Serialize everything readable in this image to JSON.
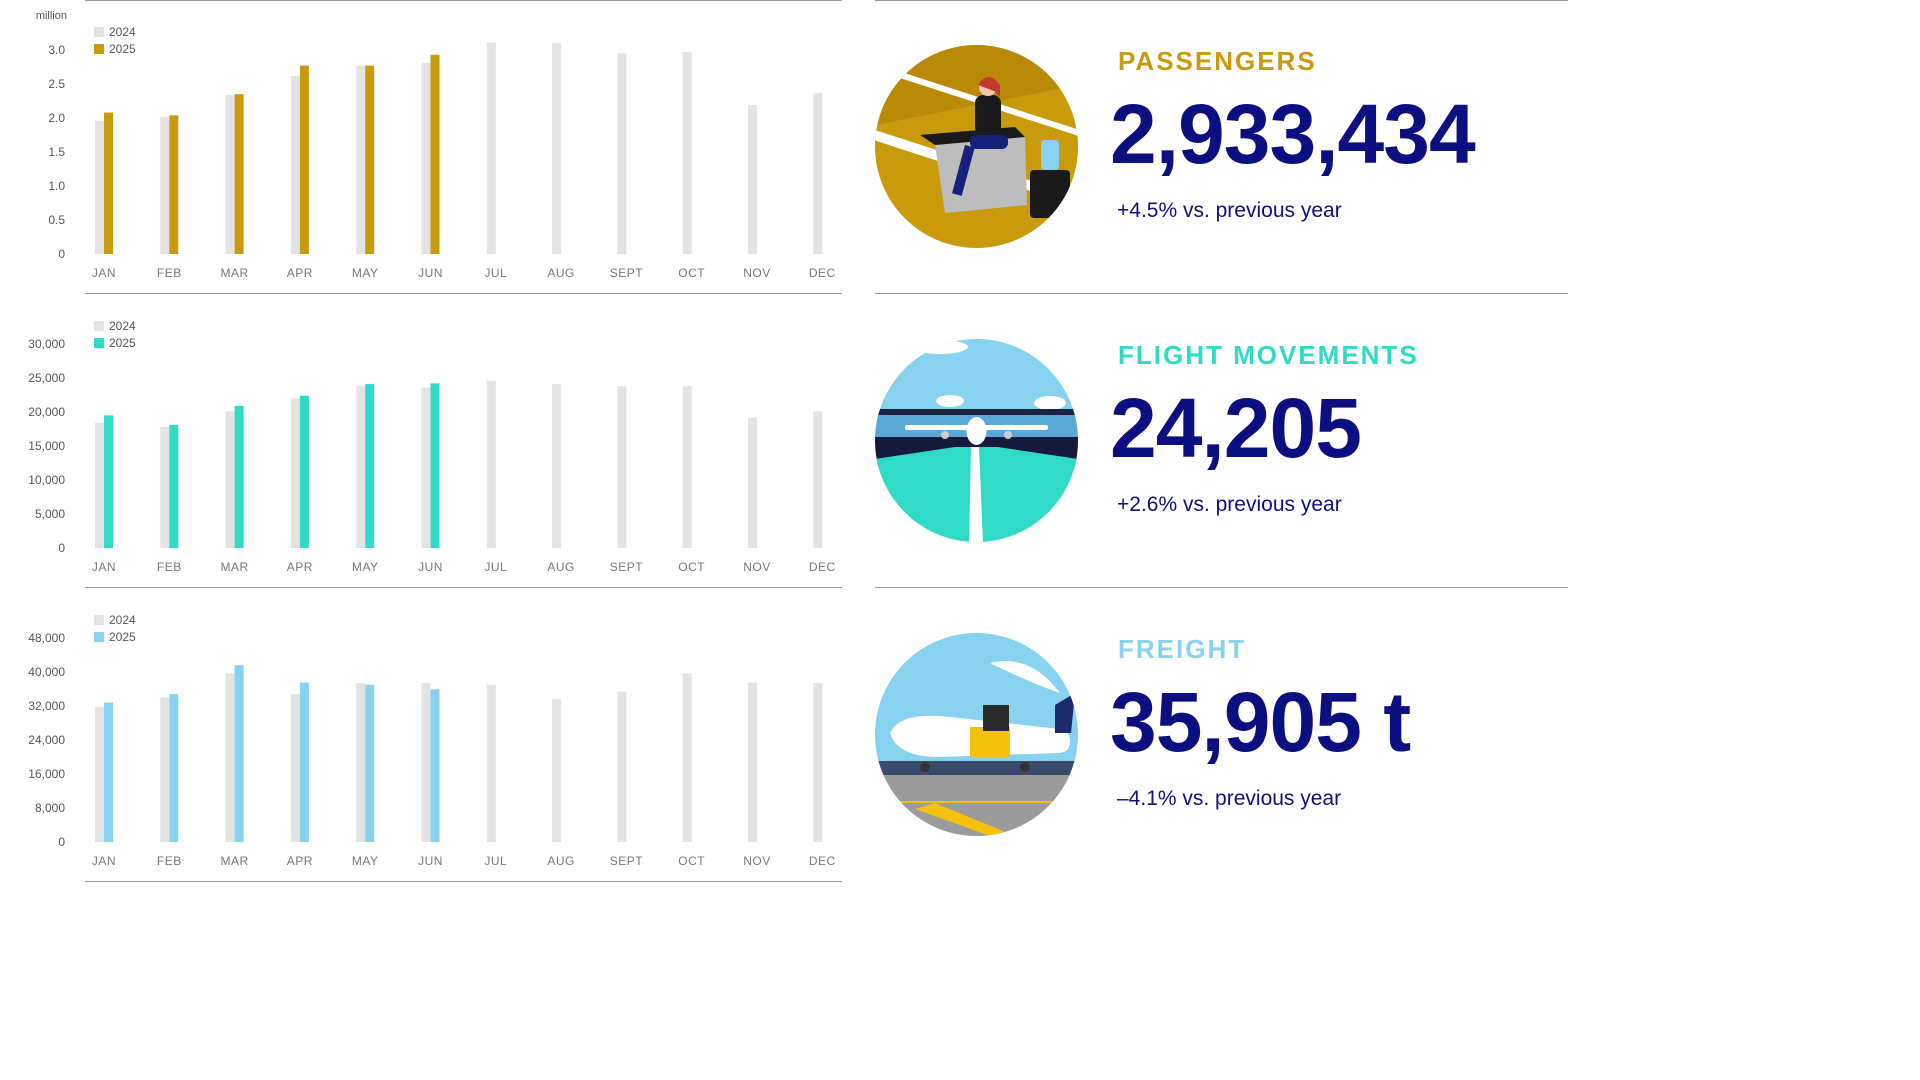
{
  "months": [
    "JAN",
    "FEB",
    "MAR",
    "APR",
    "MAY",
    "JUN",
    "JUL",
    "AUG",
    "SEPT",
    "OCT",
    "NOV",
    "DEC"
  ],
  "colors": {
    "prior": "#e3e3e3",
    "passengers": "#c89a0c",
    "flights": "#2fdbc6",
    "freight": "#86d2ef",
    "stat_value": "#0c0f80",
    "rule": "#9a9a9a"
  },
  "chart_data": [
    {
      "type": "bar",
      "unit_label": "million",
      "categories": [
        "JAN",
        "FEB",
        "MAR",
        "APR",
        "MAY",
        "JUN",
        "JUL",
        "AUG",
        "SEPT",
        "OCT",
        "NOV",
        "DEC"
      ],
      "ylim": [
        0,
        3.0
      ],
      "yticks": [
        "0",
        "0.5",
        "1.0",
        "1.5",
        "2.0",
        "2.5",
        "3.0"
      ],
      "series": [
        {
          "name": "2024",
          "color": "#e3e3e3",
          "values": [
            1.96,
            2.02,
            2.34,
            2.62,
            2.77,
            2.81,
            3.11,
            3.1,
            2.95,
            2.97,
            2.19,
            2.37
          ]
        },
        {
          "name": "2025",
          "color": "#c89a0c",
          "values": [
            2.08,
            2.04,
            2.35,
            2.77,
            2.77,
            2.93,
            null,
            null,
            null,
            null,
            null,
            null
          ]
        }
      ]
    },
    {
      "type": "bar",
      "unit_label": "",
      "categories": [
        "JAN",
        "FEB",
        "MAR",
        "APR",
        "MAY",
        "JUN",
        "JUL",
        "AUG",
        "SEPT",
        "OCT",
        "NOV",
        "DEC"
      ],
      "ylim": [
        0,
        30000
      ],
      "yticks": [
        "0",
        "5,000",
        "10,000",
        "15,000",
        "20,000",
        "25,000",
        "30,000"
      ],
      "series": [
        {
          "name": "2024",
          "color": "#e3e3e3",
          "values": [
            18400,
            17800,
            20100,
            22000,
            23800,
            23600,
            24600,
            24100,
            23800,
            23800,
            19200,
            20100
          ]
        },
        {
          "name": "2025",
          "color": "#2fdbc6",
          "values": [
            19500,
            18100,
            20900,
            22400,
            24100,
            24205,
            null,
            null,
            null,
            null,
            null,
            null
          ]
        }
      ]
    },
    {
      "type": "bar",
      "unit_label": "",
      "categories": [
        "JAN",
        "FEB",
        "MAR",
        "APR",
        "MAY",
        "JUN",
        "JUL",
        "AUG",
        "SEPT",
        "OCT",
        "NOV",
        "DEC"
      ],
      "ylim": [
        0,
        48000
      ],
      "yticks": [
        "0",
        "8,000",
        "16,000",
        "24,000",
        "32,000",
        "40,000",
        "48,000"
      ],
      "series": [
        {
          "name": "2024",
          "color": "#e3e3e3",
          "values": [
            31800,
            34000,
            39700,
            34800,
            37400,
            37400,
            37000,
            33600,
            35400,
            39700,
            37500,
            37400
          ]
        },
        {
          "name": "2025",
          "color": "#86d2ef",
          "values": [
            32800,
            34800,
            41600,
            37500,
            37000,
            35905,
            null,
            null,
            null,
            null,
            null,
            null
          ]
        }
      ]
    }
  ],
  "stats": {
    "passengers": {
      "title": "PASSENGERS",
      "value": "2,933,434",
      "change": "+4.5% vs. previous year",
      "icon": "traveler-at-airport-illustration"
    },
    "flights": {
      "title": "FLIGHT MOVEMENTS",
      "value": "24,205",
      "change": "+2.6% vs. previous year",
      "icon": "airplane-on-runway-illustration"
    },
    "freight": {
      "title": "FREIGHT",
      "value": "35,905 t",
      "change": "–4.1% vs. previous year",
      "icon": "cargo-plane-loading-illustration"
    }
  }
}
